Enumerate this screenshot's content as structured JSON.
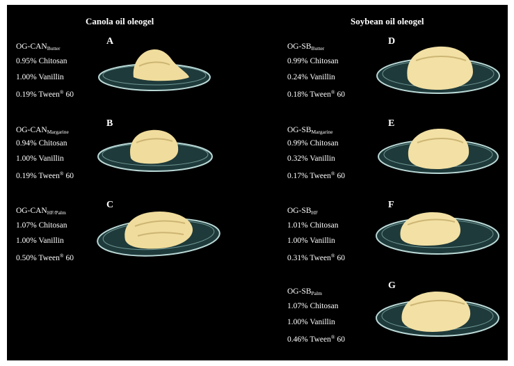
{
  "headings": {
    "canola": "Canola oil oleogel",
    "soybean": "Soybean oil oleogel"
  },
  "colors": {
    "background": "#000000",
    "text": "#ffffff",
    "oleogel": "#f0dc9c",
    "glass": "#b9d8d6"
  },
  "samples": [
    {
      "letter": "A",
      "code": "OG-CAN",
      "sub": "Butter",
      "chitosan": "0.95% Chitosan",
      "vanillin": "1.00% Vanillin",
      "tween": "0.19% Tween",
      "tween_mark": "®",
      "tween_num": " 60"
    },
    {
      "letter": "B",
      "code": "OG-CAN",
      "sub": "Margarine",
      "chitosan": "0.94% Chitosan",
      "vanillin": "1.00% Vanillin",
      "tween": "0.19% Tween",
      "tween_mark": "®",
      "tween_num": " 60"
    },
    {
      "letter": "C",
      "code": "OG-CAN",
      "sub": "HF/Palm",
      "chitosan": "1.07% Chitosan",
      "vanillin": "1.00% Vanillin",
      "tween": "0.50% Tween",
      "tween_mark": "®",
      "tween_num": " 60"
    },
    {
      "letter": "D",
      "code": "OG-SB",
      "sub": "Butter",
      "chitosan": "0.99% Chitosan",
      "vanillin": "0.24% Vanillin",
      "tween": "0.18% Tween",
      "tween_mark": "®",
      "tween_num": " 60"
    },
    {
      "letter": "E",
      "code": "OG-SB",
      "sub": "Margarine",
      "chitosan": "0.99% Chitosan",
      "vanillin": "0.32% Vanillin",
      "tween": "0.17% Tween",
      "tween_mark": "®",
      "tween_num": " 60"
    },
    {
      "letter": "F",
      "code": "OG-SB",
      "sub": "HF",
      "chitosan": "1.01% Chitosan",
      "vanillin": "1.00% Vanillin",
      "tween": "0.31% Tween",
      "tween_mark": "®",
      "tween_num": " 60"
    },
    {
      "letter": "G",
      "code": "OG-SB",
      "sub": "Palm",
      "chitosan": "1.07% Chitosan",
      "vanillin": "1.00% Vanillin",
      "tween": "0.46% Tween",
      "tween_mark": "®",
      "tween_num": " 60"
    }
  ]
}
